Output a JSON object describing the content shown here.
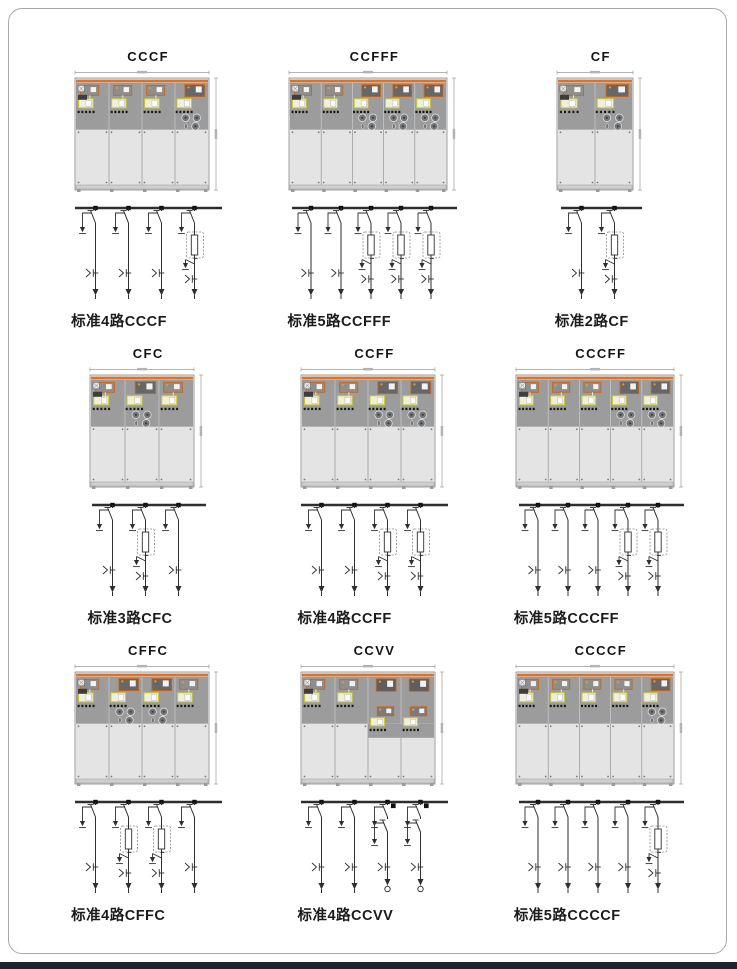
{
  "colors": {
    "accent_orange": "#d9742e",
    "cabinet_upper_gray": "#9c9c9c",
    "cabinet_lower_gray": "#e4e4e4",
    "cabinet_body": "#f0f0f0",
    "yellow_accent": "#cbcb34",
    "component_orange_border": "#c8651b",
    "diagram_line": "#2e2e2e",
    "dimension_gray": "#9a9a9a",
    "page_border": "#a9a9a9",
    "footer_dark": "#1d2433"
  },
  "panels": [
    {
      "title": "CCCF",
      "caption": "标准4路CCCF",
      "units": [
        "C",
        "C",
        "C",
        "F"
      ]
    },
    {
      "title": "CCFFF",
      "caption": "标准5路CCFFF",
      "units": [
        "C",
        "C",
        "F",
        "F",
        "F"
      ]
    },
    {
      "title": "CF",
      "caption": "标准2路CF",
      "units": [
        "C",
        "F"
      ]
    },
    {
      "title": "CFC",
      "caption": "标准3路CFC",
      "units": [
        "C",
        "F",
        "C"
      ]
    },
    {
      "title": "CCFF",
      "caption": "标准4路CCFF",
      "units": [
        "C",
        "C",
        "F",
        "F"
      ]
    },
    {
      "title": "CCCFF",
      "caption": "标准5路CCCFF",
      "units": [
        "C",
        "C",
        "C",
        "F",
        "F"
      ]
    },
    {
      "title": "CFFC",
      "caption": "标准4路CFFC",
      "units": [
        "C",
        "F",
        "F",
        "C"
      ]
    },
    {
      "title": "CCVV",
      "caption": "标准4路CCVV",
      "units": [
        "C",
        "C",
        "V",
        "V"
      ]
    },
    {
      "title": "CCCCF",
      "caption": "标准5路CCCCF",
      "units": [
        "C",
        "C",
        "C",
        "C",
        "F"
      ]
    }
  ]
}
